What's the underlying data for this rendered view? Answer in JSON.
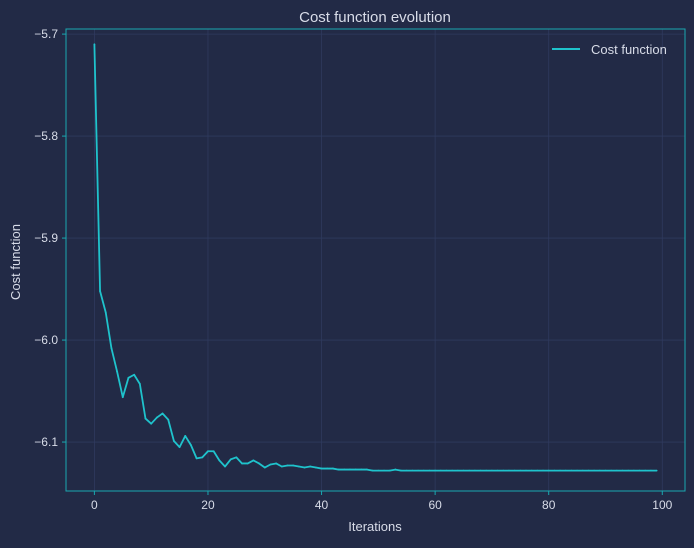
{
  "colors": {
    "background": "#222a46",
    "plot_background": "#222a46",
    "frame": "#19a8b0",
    "grid": "#2f3a5e",
    "line": "#1fc3cc",
    "text": "#d8dce8"
  },
  "chart_data": {
    "type": "line",
    "title": "Cost function evolution",
    "xlabel": "Iterations",
    "ylabel": "Cost function",
    "xlim": [
      -5,
      104
    ],
    "ylim": [
      -6.148,
      -5.695
    ],
    "xticks": [
      0,
      20,
      40,
      60,
      80,
      100
    ],
    "yticks": [
      -5.7,
      -5.8,
      -5.9,
      -6.0,
      -6.1
    ],
    "xtick_labels": [
      "0",
      "20",
      "40",
      "60",
      "80",
      "100"
    ],
    "ytick_labels": [
      "−5.7",
      "−5.8",
      "−5.9",
      "−6.0",
      "−6.1"
    ],
    "grid": true,
    "legend_position": "top-right",
    "series": [
      {
        "name": "Cost function",
        "x": [
          0,
          1,
          2,
          3,
          4,
          5,
          6,
          7,
          8,
          9,
          10,
          11,
          12,
          13,
          14,
          15,
          16,
          17,
          18,
          19,
          20,
          21,
          22,
          23,
          24,
          25,
          26,
          27,
          28,
          29,
          30,
          31,
          32,
          33,
          34,
          35,
          36,
          37,
          38,
          39,
          40,
          41,
          42,
          43,
          44,
          45,
          46,
          47,
          48,
          49,
          50,
          51,
          52,
          53,
          54,
          55,
          56,
          57,
          58,
          59,
          60,
          61,
          62,
          63,
          64,
          65,
          66,
          67,
          68,
          69,
          70,
          71,
          72,
          73,
          74,
          75,
          76,
          77,
          78,
          79,
          80,
          81,
          82,
          83,
          84,
          85,
          86,
          87,
          88,
          89,
          90,
          91,
          92,
          93,
          94,
          95,
          96,
          97,
          98,
          99
        ],
        "y": [
          -5.71,
          -5.952,
          -5.973,
          -6.008,
          -6.031,
          -6.056,
          -6.037,
          -6.034,
          -6.043,
          -6.077,
          -6.082,
          -6.076,
          -6.072,
          -6.078,
          -6.099,
          -6.105,
          -6.094,
          -6.103,
          -6.116,
          -6.115,
          -6.109,
          -6.109,
          -6.118,
          -6.124,
          -6.117,
          -6.115,
          -6.121,
          -6.121,
          -6.118,
          -6.121,
          -6.125,
          -6.122,
          -6.121,
          -6.124,
          -6.123,
          -6.123,
          -6.124,
          -6.125,
          -6.124,
          -6.125,
          -6.126,
          -6.126,
          -6.126,
          -6.127,
          -6.127,
          -6.127,
          -6.127,
          -6.127,
          -6.127,
          -6.128,
          -6.128,
          -6.128,
          -6.128,
          -6.127,
          -6.128,
          -6.128,
          -6.128,
          -6.128,
          -6.128,
          -6.128,
          -6.128,
          -6.128,
          -6.128,
          -6.128,
          -6.128,
          -6.128,
          -6.128,
          -6.128,
          -6.128,
          -6.128,
          -6.128,
          -6.128,
          -6.128,
          -6.128,
          -6.128,
          -6.128,
          -6.128,
          -6.128,
          -6.128,
          -6.128,
          -6.128,
          -6.128,
          -6.128,
          -6.128,
          -6.128,
          -6.128,
          -6.128,
          -6.128,
          -6.128,
          -6.128,
          -6.128,
          -6.128,
          -6.128,
          -6.128,
          -6.128,
          -6.128,
          -6.128,
          -6.128,
          -6.128,
          -6.128
        ]
      }
    ]
  }
}
